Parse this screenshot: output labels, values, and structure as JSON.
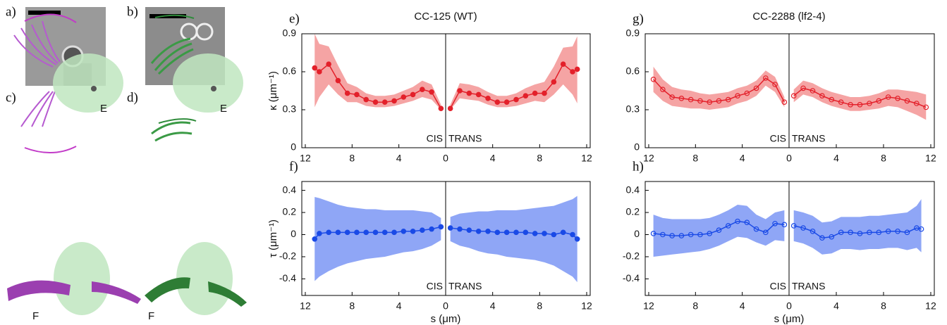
{
  "figure": {
    "labels": {
      "a": "a)",
      "b": "b)",
      "c": "c)",
      "d": "d)",
      "c_e": "E",
      "c_f": "F",
      "d_e": "E",
      "d_f": "F"
    }
  },
  "chart_data": [
    {
      "type": "line",
      "panel": "e)",
      "title": "CC-125 (WT)",
      "ylabel": "κ (μm⁻¹)",
      "color": "#e3202a",
      "band_color": "#f5a4a4",
      "marker": "filled",
      "ylim": [
        0,
        0.9
      ],
      "yticks": [
        0,
        0.3,
        0.6,
        0.9
      ],
      "halves": [
        {
          "label": "CIS",
          "xlim": [
            12.3,
            0
          ],
          "xticks": [
            12,
            8,
            4
          ],
          "x": [
            0.4,
            1.2,
            2.0,
            2.8,
            3.6,
            4.4,
            5.2,
            6.0,
            6.8,
            7.6,
            8.4,
            9.2,
            10.0,
            10.8,
            11.2
          ],
          "values": [
            0.31,
            0.44,
            0.46,
            0.42,
            0.4,
            0.37,
            0.36,
            0.36,
            0.38,
            0.42,
            0.43,
            0.53,
            0.66,
            0.6,
            0.63
          ],
          "lower": [
            0.3,
            0.38,
            0.4,
            0.37,
            0.35,
            0.33,
            0.32,
            0.32,
            0.33,
            0.36,
            0.36,
            0.42,
            0.5,
            0.4,
            0.32
          ],
          "upper": [
            0.34,
            0.5,
            0.53,
            0.48,
            0.45,
            0.42,
            0.41,
            0.41,
            0.43,
            0.48,
            0.51,
            0.65,
            0.8,
            0.82,
            0.9
          ]
        },
        {
          "label": "TRANS",
          "xlim": [
            0,
            12.3
          ],
          "xticks": [
            0,
            4,
            8,
            12
          ],
          "x": [
            0.4,
            1.2,
            2.0,
            2.8,
            3.6,
            4.4,
            5.2,
            6.0,
            6.8,
            7.6,
            8.4,
            9.2,
            10.0,
            10.8,
            11.2
          ],
          "values": [
            0.31,
            0.45,
            0.43,
            0.42,
            0.39,
            0.36,
            0.36,
            0.38,
            0.41,
            0.43,
            0.43,
            0.52,
            0.66,
            0.6,
            0.62
          ],
          "lower": [
            0.3,
            0.39,
            0.38,
            0.37,
            0.34,
            0.32,
            0.32,
            0.33,
            0.35,
            0.37,
            0.36,
            0.42,
            0.5,
            0.42,
            0.35
          ],
          "upper": [
            0.34,
            0.51,
            0.5,
            0.48,
            0.44,
            0.41,
            0.41,
            0.43,
            0.47,
            0.5,
            0.52,
            0.64,
            0.79,
            0.8,
            0.88
          ]
        }
      ]
    },
    {
      "type": "line",
      "panel": "f)",
      "ylabel": "τ (μm⁻¹)",
      "xlabel": "s (μm)",
      "color": "#1a4ae6",
      "band_color": "#8fa6f6",
      "marker": "filled",
      "ylim": [
        -0.55,
        0.48
      ],
      "yticks": [
        -0.4,
        -0.2,
        0,
        0.2,
        0.4
      ],
      "halves": [
        {
          "label": "CIS",
          "xlim": [
            12.3,
            0
          ],
          "xticks": [
            12,
            8,
            4
          ],
          "x": [
            0.4,
            1.2,
            2.0,
            2.8,
            3.6,
            4.4,
            5.2,
            6.0,
            6.8,
            7.6,
            8.4,
            9.2,
            10.0,
            10.8,
            11.2
          ],
          "values": [
            0.07,
            0.05,
            0.04,
            0.03,
            0.03,
            0.02,
            0.02,
            0.02,
            0.02,
            0.02,
            0.02,
            0.02,
            0.02,
            0.01,
            -0.04
          ],
          "lower": [
            -0.05,
            -0.1,
            -0.13,
            -0.15,
            -0.16,
            -0.18,
            -0.2,
            -0.21,
            -0.22,
            -0.24,
            -0.26,
            -0.29,
            -0.33,
            -0.38,
            -0.42
          ],
          "upper": [
            0.15,
            0.2,
            0.21,
            0.22,
            0.22,
            0.22,
            0.22,
            0.23,
            0.23,
            0.24,
            0.25,
            0.27,
            0.3,
            0.33,
            0.34
          ]
        },
        {
          "label": "TRANS",
          "xlim": [
            0,
            12.3
          ],
          "xticks": [
            0,
            4,
            8,
            12
          ],
          "x": [
            0.4,
            1.2,
            2.0,
            2.8,
            3.6,
            4.4,
            5.2,
            6.0,
            6.8,
            7.6,
            8.4,
            9.2,
            10.0,
            10.8,
            11.2
          ],
          "values": [
            0.06,
            0.05,
            0.04,
            0.03,
            0.03,
            0.02,
            0.02,
            0.02,
            0.02,
            0.01,
            0.01,
            0.0,
            0.02,
            0.0,
            -0.04
          ],
          "lower": [
            -0.06,
            -0.1,
            -0.12,
            -0.15,
            -0.17,
            -0.18,
            -0.2,
            -0.21,
            -0.22,
            -0.23,
            -0.25,
            -0.28,
            -0.33,
            -0.38,
            -0.43
          ],
          "upper": [
            0.16,
            0.19,
            0.2,
            0.21,
            0.21,
            0.22,
            0.22,
            0.22,
            0.23,
            0.24,
            0.25,
            0.26,
            0.29,
            0.32,
            0.35
          ]
        }
      ]
    },
    {
      "type": "line",
      "panel": "g)",
      "title": "CC-2288 (lf2-4)",
      "color": "#e3202a",
      "band_color": "#f5a4a4",
      "marker": "open",
      "ylim": [
        0,
        0.9
      ],
      "yticks": [
        0,
        0.3,
        0.6,
        0.9
      ],
      "halves": [
        {
          "label": "CIS",
          "xlim": [
            12.3,
            0
          ],
          "xticks": [
            12,
            8,
            4
          ],
          "x": [
            0.4,
            1.2,
            2.0,
            2.8,
            3.6,
            4.4,
            5.2,
            6.0,
            6.8,
            7.6,
            8.4,
            9.2,
            10.0,
            10.8,
            11.6
          ],
          "values": [
            0.36,
            0.5,
            0.55,
            0.47,
            0.43,
            0.41,
            0.38,
            0.37,
            0.36,
            0.37,
            0.38,
            0.39,
            0.4,
            0.46,
            0.54
          ],
          "lower": [
            0.32,
            0.44,
            0.49,
            0.41,
            0.37,
            0.35,
            0.32,
            0.31,
            0.3,
            0.31,
            0.31,
            0.32,
            0.33,
            0.37,
            0.44
          ],
          "upper": [
            0.4,
            0.56,
            0.61,
            0.53,
            0.49,
            0.47,
            0.44,
            0.43,
            0.42,
            0.43,
            0.45,
            0.46,
            0.48,
            0.54,
            0.64
          ]
        },
        {
          "label": "TRANS",
          "xlim": [
            0,
            12.3
          ],
          "xticks": [
            0,
            4,
            8,
            12
          ],
          "x": [
            0.4,
            1.2,
            2.0,
            2.8,
            3.6,
            4.4,
            5.2,
            6.0,
            6.8,
            7.6,
            8.4,
            9.2,
            10.0,
            10.8,
            11.6
          ],
          "values": [
            0.41,
            0.47,
            0.45,
            0.41,
            0.38,
            0.36,
            0.34,
            0.34,
            0.35,
            0.37,
            0.4,
            0.39,
            0.37,
            0.35,
            0.32
          ],
          "lower": [
            0.36,
            0.42,
            0.4,
            0.36,
            0.33,
            0.31,
            0.29,
            0.29,
            0.3,
            0.31,
            0.33,
            0.32,
            0.29,
            0.26,
            0.22
          ],
          "upper": [
            0.46,
            0.53,
            0.51,
            0.47,
            0.44,
            0.42,
            0.4,
            0.4,
            0.41,
            0.43,
            0.46,
            0.46,
            0.45,
            0.44,
            0.42
          ]
        }
      ]
    },
    {
      "type": "line",
      "panel": "h)",
      "xlabel": "s (μm)",
      "color": "#1a4ae6",
      "band_color": "#8fa6f6",
      "marker": "open",
      "ylim": [
        -0.55,
        0.48
      ],
      "yticks": [
        -0.4,
        -0.2,
        0,
        0.2,
        0.4
      ],
      "halves": [
        {
          "label": "CIS",
          "xlim": [
            12.3,
            0
          ],
          "xticks": [
            12,
            8,
            4
          ],
          "x": [
            0.4,
            1.2,
            2.0,
            2.8,
            3.6,
            4.4,
            5.2,
            6.0,
            6.8,
            7.6,
            8.4,
            9.2,
            10.0,
            10.8,
            11.6
          ],
          "values": [
            0.09,
            0.1,
            0.02,
            0.05,
            0.11,
            0.12,
            0.08,
            0.04,
            0.01,
            0.0,
            0.0,
            -0.01,
            -0.01,
            0.0,
            0.01
          ],
          "lower": [
            -0.06,
            -0.05,
            -0.1,
            -0.07,
            -0.03,
            -0.02,
            -0.06,
            -0.1,
            -0.13,
            -0.15,
            -0.16,
            -0.17,
            -0.18,
            -0.19,
            -0.2
          ],
          "upper": [
            0.22,
            0.2,
            0.14,
            0.18,
            0.26,
            0.27,
            0.22,
            0.18,
            0.15,
            0.14,
            0.14,
            0.14,
            0.14,
            0.15,
            0.18
          ]
        },
        {
          "label": "TRANS",
          "xlim": [
            0,
            12.3
          ],
          "xticks": [
            0,
            4,
            8,
            12
          ],
          "x": [
            0.4,
            1.2,
            2.0,
            2.8,
            3.6,
            4.4,
            5.2,
            6.0,
            6.8,
            7.6,
            8.4,
            9.2,
            10.0,
            10.8,
            11.2
          ],
          "values": [
            0.08,
            0.06,
            0.03,
            -0.03,
            -0.02,
            0.02,
            0.02,
            0.01,
            0.02,
            0.02,
            0.03,
            0.03,
            0.02,
            0.06,
            0.05
          ],
          "lower": [
            -0.06,
            -0.08,
            -0.12,
            -0.18,
            -0.17,
            -0.13,
            -0.13,
            -0.14,
            -0.13,
            -0.13,
            -0.12,
            -0.12,
            -0.14,
            -0.12,
            -0.16
          ],
          "upper": [
            0.22,
            0.2,
            0.17,
            0.11,
            0.12,
            0.16,
            0.16,
            0.16,
            0.17,
            0.17,
            0.18,
            0.19,
            0.2,
            0.26,
            0.32
          ]
        }
      ]
    }
  ]
}
